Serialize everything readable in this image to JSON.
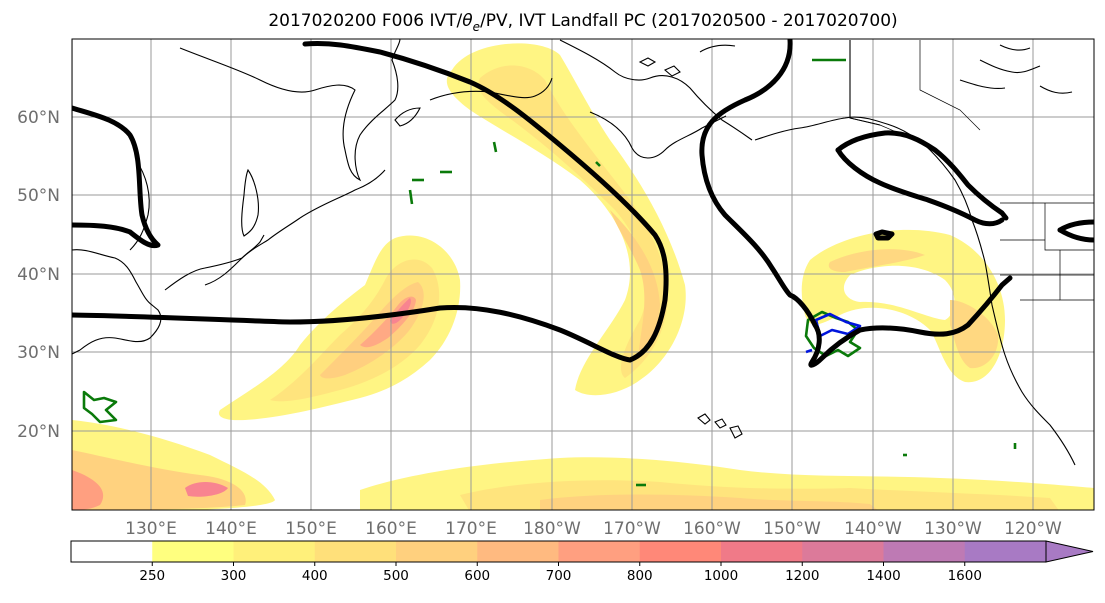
{
  "title": "2017020200 F006 IVT/θe/PV, IVT Landfall PC (2017020500 - 2017020700)",
  "title_parts": {
    "prefix": "2017020200 F006 IVT/",
    "theta": "θ",
    "theta_sub": "e",
    "suffix": "/PV, IVT Landfall PC (2017020500 - 2017020700)"
  },
  "map": {
    "lat_labels": [
      "60°N",
      "50°N",
      "40°N",
      "30°N",
      "20°N"
    ],
    "lon_labels": [
      "130°E",
      "140°E",
      "150°E",
      "160°E",
      "170°E",
      "180°W",
      "170°W",
      "160°W",
      "150°W",
      "140°W",
      "130°W",
      "120°W"
    ]
  },
  "colorbar": {
    "levels": [
      250,
      300,
      400,
      500,
      600,
      700,
      800,
      1000,
      1200,
      1400,
      1600
    ],
    "labels": [
      "250",
      "300",
      "400",
      "500",
      "600",
      "700",
      "800",
      "1000",
      "1200",
      "1400",
      "1600"
    ],
    "colors": [
      "#ffffff",
      "#ffff7f",
      "#fff07a",
      "#ffe07a",
      "#ffd07e",
      "#ffba80",
      "#ff9f80",
      "#ff8878",
      "#f07a88",
      "#dc7a9a",
      "#be7ab4",
      "#a87ac4"
    ],
    "extend": "max"
  },
  "colors": {
    "pv_contour": "#000000",
    "theta_e_contour": "#0a7a0a",
    "pc_contour": "#0015dd"
  }
}
